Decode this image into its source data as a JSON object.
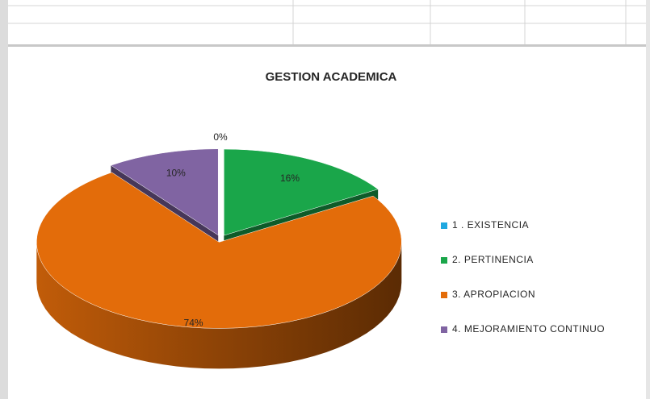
{
  "chart_data": {
    "type": "pie3d",
    "title": "GESTION ACADEMICA",
    "categories": [
      "1 . EXISTENCIA",
      "2. PERTINENCIA",
      "3. APROPIACION",
      "4. MEJORAMIENTO CONTINUO"
    ],
    "values": [
      0,
      16,
      74,
      10
    ],
    "value_labels": [
      "0%",
      "16%",
      "74%",
      "10%"
    ],
    "colors": [
      "#1fa8e0",
      "#1aa64a",
      "#e36c0a",
      "#8064a2"
    ],
    "legend": "right"
  }
}
